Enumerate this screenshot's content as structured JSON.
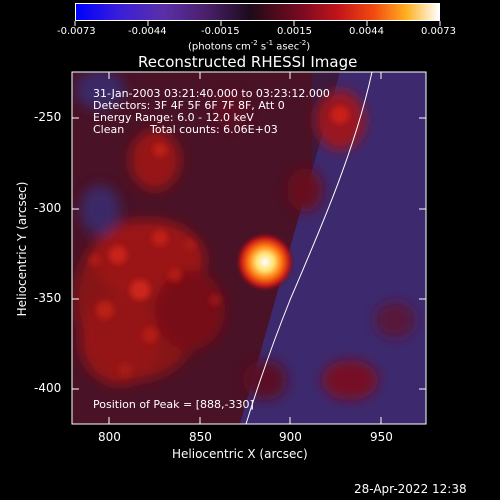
{
  "colorbar": {
    "ticks": [
      "-0.0073",
      "-0.0044",
      "-0.0015",
      "0.0015",
      "0.0044",
      "0.0073"
    ],
    "units_main": "(photons cm",
    "units_exp1": "-2",
    "units_mid": " s",
    "units_exp2": "-1",
    "units_end": " asec",
    "units_exp3": "-2",
    "units_close": ")"
  },
  "plot": {
    "title": "Reconstructed RHESSI Image",
    "xlabel": "Heliocentric X (arcsec)",
    "ylabel": "Heliocentric Y (arcsec)",
    "xticks": [
      "800",
      "850",
      "900",
      "950"
    ],
    "yticks": [
      "-250",
      "-300",
      "-350",
      "-400"
    ],
    "xlim": [
      782,
      975
    ],
    "ylim": [
      -418,
      -221
    ],
    "info": {
      "line1": "31-Jan-2003 03:21:40.000 to 03:23:12.000",
      "line2": "Detectors: 3F 4F 5F 6F 7F 8F, Att 0",
      "line3": "Energy Range: 6.0 - 12.0 keV",
      "line4_a": "Clean",
      "line4_b": "Total counts: 6.06E+03"
    },
    "peak": "Position of Peak = [888,-330]"
  },
  "footer": {
    "timestamp": "28-Apr-2022 12:38"
  },
  "colors": {
    "background": "#000000",
    "frame": "#ffffff",
    "limb": "#ffffff"
  }
}
